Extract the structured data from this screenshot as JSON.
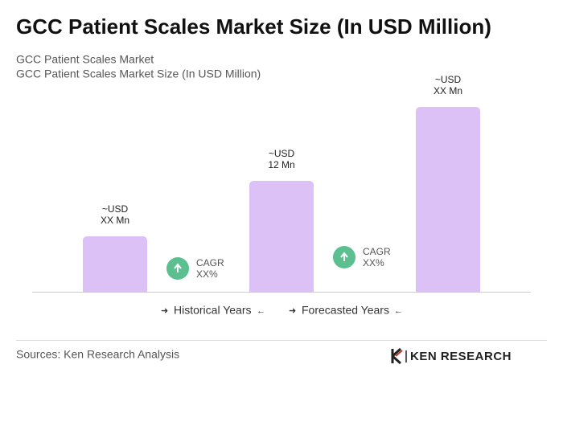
{
  "chart_data": {
    "type": "bar",
    "title": "GCC Patient Scales Market Size (In USD Million)",
    "subtitle": [
      "GCC Patient Scales Market",
      "GCC Patient Scales Market Size (In USD Million)"
    ],
    "categories": [
      null,
      null,
      null
    ],
    "values": [
      6,
      12,
      20
    ],
    "value_labels": [
      [
        "~USD",
        "XX Mn"
      ],
      [
        "~USD",
        "12 Mn"
      ],
      [
        "~USD",
        "XX Mn"
      ]
    ],
    "color": "#dcc1f7",
    "annotations": [
      [
        "CAGR",
        "XX%"
      ],
      [
        "CAGR",
        "XX%"
      ]
    ],
    "legend": [
      "Historical Years",
      "Forecasted Years"
    ]
  },
  "footer": {
    "source": "Sources: Ken Research Analysis",
    "logo": "KEN RESEARCH"
  }
}
